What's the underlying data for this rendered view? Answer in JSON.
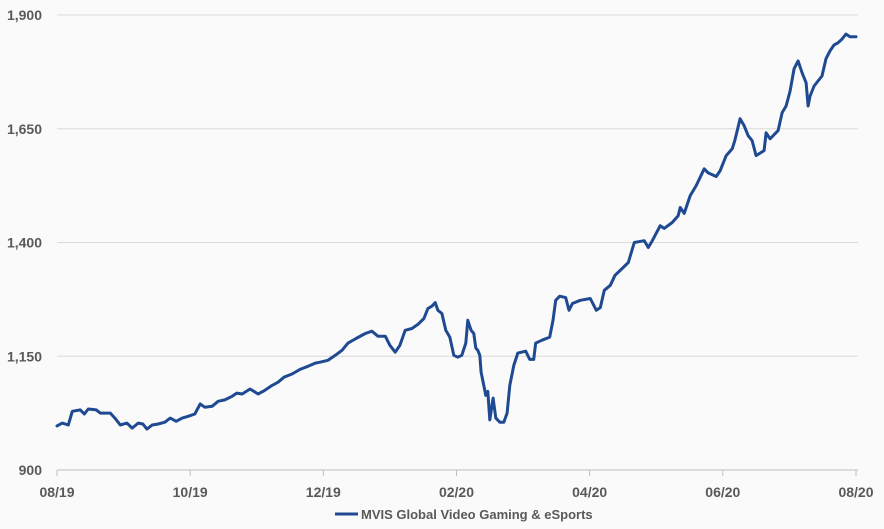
{
  "chart_data": {
    "type": "line",
    "title": "",
    "xlabel": "",
    "ylabel": "",
    "x_unit": "months since 08/19",
    "xlim": [
      0,
      12
    ],
    "ylim": [
      900,
      1900
    ],
    "grid": true,
    "legend_placement": "bottom-center",
    "y_ticks": [
      900,
      1150,
      1400,
      1650,
      1900
    ],
    "y_tick_labels": [
      "900",
      "1,150",
      "1,400",
      "1,650",
      "1,900"
    ],
    "x_ticks": [
      0,
      2,
      4,
      6,
      8,
      10,
      12
    ],
    "x_tick_labels": [
      "08/19",
      "10/19",
      "12/19",
      "02/20",
      "04/20",
      "06/20",
      "08/20"
    ],
    "colors": {
      "series": "#1f4a91",
      "grid": "#d9d9d9",
      "axis": "#bfbfbf"
    },
    "series": [
      {
        "name": "MVIS Global Video Gaming & eSports",
        "x": [
          0,
          0.08,
          0.17,
          0.23,
          0.35,
          0.41,
          0.47,
          0.59,
          0.65,
          0.8,
          0.87,
          0.95,
          1.05,
          1.13,
          1.22,
          1.29,
          1.35,
          1.43,
          1.52,
          1.62,
          1.7,
          1.79,
          1.88,
          1.97,
          2.07,
          2.15,
          2.22,
          2.33,
          2.42,
          2.52,
          2.63,
          2.7,
          2.78,
          2.9,
          3.02,
          3.12,
          3.23,
          3.32,
          3.41,
          3.53,
          3.65,
          3.77,
          3.88,
          3.95,
          4.07,
          4.18,
          4.28,
          4.37,
          4.49,
          4.63,
          4.73,
          4.82,
          4.93,
          5.0,
          5.08,
          5.15,
          5.23,
          5.33,
          5.42,
          5.51,
          5.57,
          5.63,
          5.68,
          5.72,
          5.78,
          5.84,
          5.9,
          5.96,
          6.02,
          6.08,
          6.14,
          6.17,
          6.22,
          6.26,
          6.29,
          6.32,
          6.35,
          6.37,
          6.41,
          6.44,
          6.47,
          6.5,
          6.55,
          6.59,
          6.65,
          6.71,
          6.76,
          6.8,
          6.86,
          6.92,
          7.04,
          7.1,
          7.16,
          7.19,
          7.28,
          7.4,
          7.45,
          7.49,
          7.55,
          7.64,
          7.69,
          7.74,
          7.86,
          8.01,
          8.1,
          8.16,
          8.22,
          8.31,
          8.38,
          8.49,
          8.58,
          8.67,
          8.82,
          8.88,
          8.94,
          9.06,
          9.12,
          9.24,
          9.33,
          9.36,
          9.42,
          9.51,
          9.6,
          9.72,
          9.78,
          9.9,
          9.96,
          10.05,
          10.14,
          10.18,
          10.26,
          10.32,
          10.38,
          10.44,
          10.5,
          10.62,
          10.65,
          10.71,
          10.83,
          10.89,
          10.95,
          11.01,
          11.07,
          11.13,
          11.19,
          11.25,
          11.28,
          11.31,
          11.37,
          11.43,
          11.49,
          11.55,
          11.61,
          11.67,
          11.73,
          11.79,
          11.85,
          11.91,
          12.0
        ],
        "values": [
          997,
          1003,
          999,
          1029,
          1032,
          1023,
          1034,
          1032,
          1025,
          1025,
          1014,
          999,
          1003,
          992,
          1003,
          1001,
          990,
          999,
          1001,
          1005,
          1014,
          1007,
          1014,
          1018,
          1023,
          1045,
          1038,
          1040,
          1051,
          1054,
          1062,
          1069,
          1067,
          1078,
          1067,
          1075,
          1086,
          1093,
          1104,
          1111,
          1121,
          1128,
          1135,
          1137,
          1141,
          1152,
          1163,
          1179,
          1189,
          1200,
          1205,
          1194,
          1194,
          1174,
          1159,
          1174,
          1207,
          1211,
          1220,
          1233,
          1255,
          1260,
          1268,
          1251,
          1244,
          1207,
          1192,
          1152,
          1148,
          1152,
          1179,
          1229,
          1207,
          1200,
          1168,
          1163,
          1152,
          1115,
          1086,
          1064,
          1073,
          1010,
          1058,
          1014,
          1005,
          1005,
          1025,
          1086,
          1130,
          1157,
          1161,
          1143,
          1143,
          1179,
          1185,
          1192,
          1229,
          1273,
          1282,
          1279,
          1251,
          1266,
          1273,
          1277,
          1251,
          1257,
          1295,
          1306,
          1328,
          1343,
          1356,
          1400,
          1404,
          1389,
          1404,
          1437,
          1431,
          1444,
          1459,
          1477,
          1464,
          1503,
          1525,
          1562,
          1553,
          1545,
          1558,
          1591,
          1606,
          1624,
          1672,
          1657,
          1635,
          1624,
          1591,
          1602,
          1641,
          1628,
          1646,
          1685,
          1700,
          1733,
          1782,
          1799,
          1773,
          1751,
          1700,
          1722,
          1744,
          1755,
          1766,
          1804,
          1821,
          1834,
          1839,
          1847,
          1858,
          1852,
          1852
        ]
      }
    ]
  }
}
